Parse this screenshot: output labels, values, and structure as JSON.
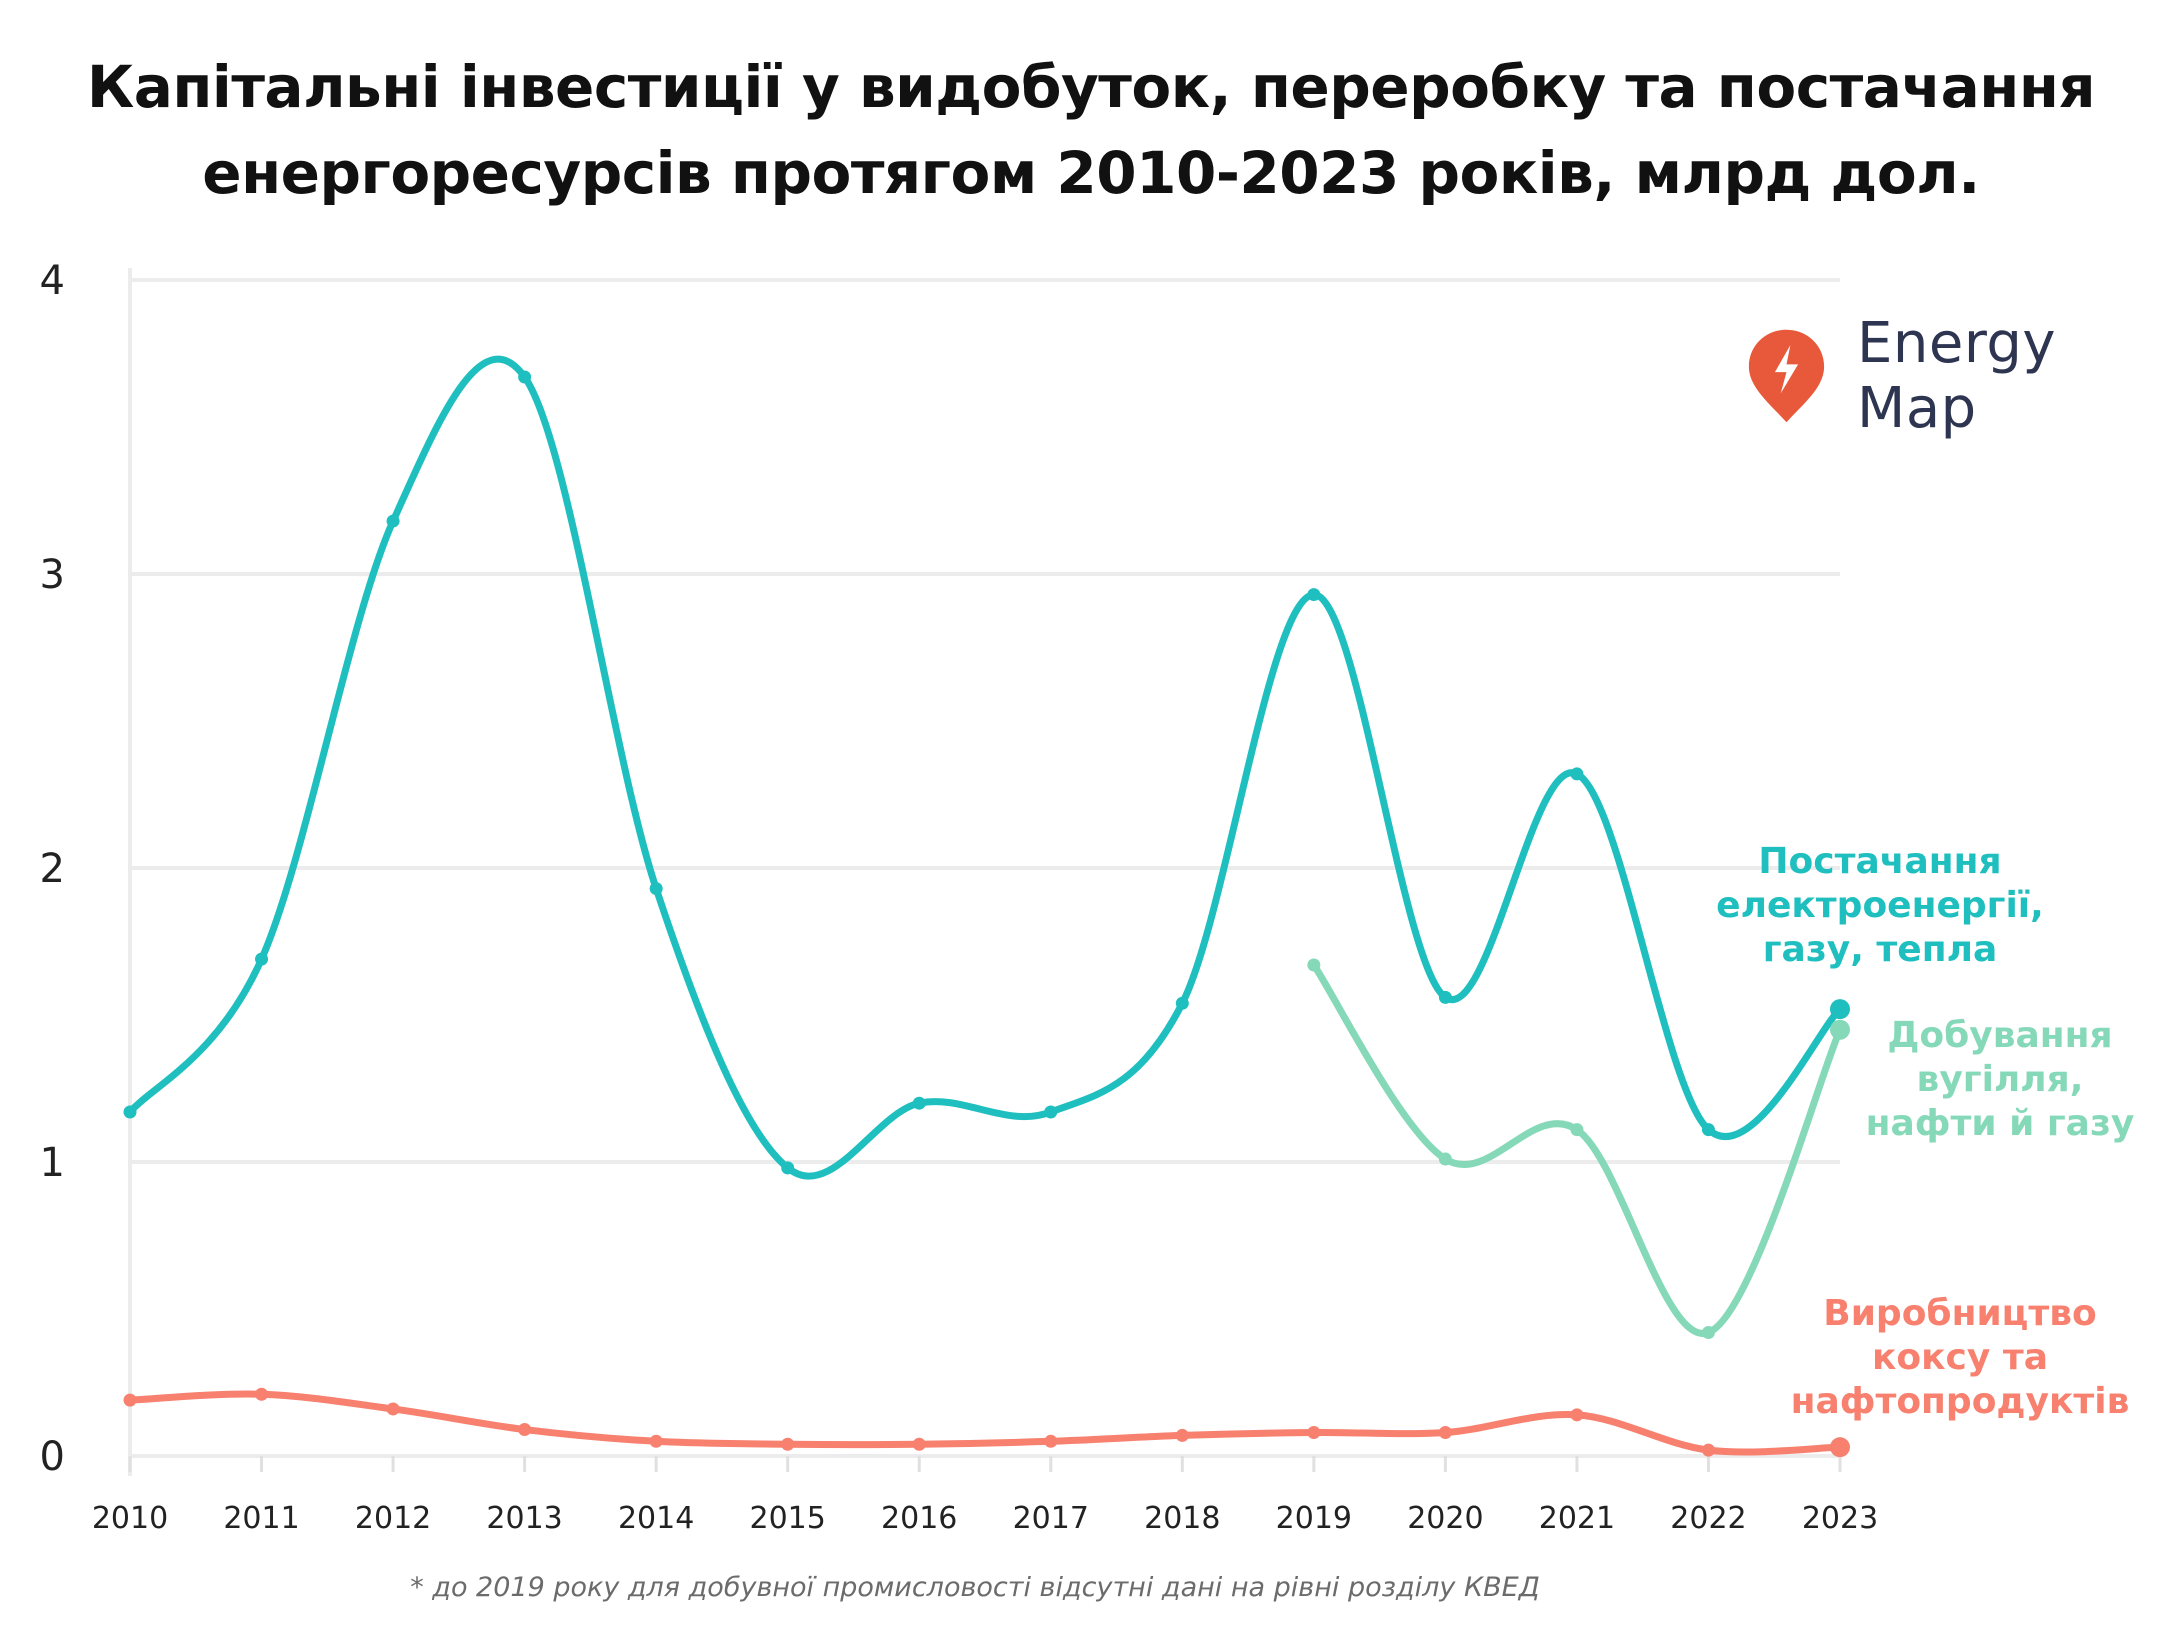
{
  "title_lines": [
    "Капітальні інвестиції у видобуток, переробку та постачання",
    "енергоресурсів протягом 2010-2023 років, млрд дол."
  ],
  "logo": {
    "text": "Energy Map",
    "icon": "lightning-pin-icon",
    "color": "#e8583b"
  },
  "footnote": "* до 2019 року для добувної промисловості відсутні дані на рівні розділу КВЕД",
  "chart_data": {
    "type": "line",
    "title": "Капітальні інвестиції у видобуток, переробку та постачання енергоресурсів протягом 2010-2023 років, млрд дол.",
    "xlabel": "",
    "ylabel": "",
    "x": [
      2010,
      2011,
      2012,
      2013,
      2014,
      2015,
      2016,
      2017,
      2018,
      2019,
      2020,
      2021,
      2022,
      2023
    ],
    "ylim": [
      0,
      4
    ],
    "yticks": [
      "0",
      "1",
      "2",
      "3",
      "4"
    ],
    "grid": true,
    "legend": "inline labels at right end of lines",
    "series": [
      {
        "name": "Постачання електроенергії, газу, тепла",
        "label_lines": [
          "Постачання",
          "електроенергії,",
          "газу, тепла"
        ],
        "color": "#1fbfbf",
        "values": [
          1.17,
          1.69,
          3.18,
          3.67,
          1.93,
          0.98,
          1.2,
          1.17,
          1.54,
          2.93,
          1.56,
          2.32,
          1.11,
          1.52
        ]
      },
      {
        "name": "Добування вугілля, нафти й газу",
        "label_lines": [
          "Добування",
          "вугілля,",
          "нафти й газу"
        ],
        "color": "#85d9b9",
        "values": [
          null,
          null,
          null,
          null,
          null,
          null,
          null,
          null,
          null,
          1.67,
          1.01,
          1.11,
          0.42,
          1.45
        ]
      },
      {
        "name": "Виробництво коксу та нафтопродуктів",
        "label_lines": [
          "Виробництво",
          "коксу та",
          "нафтопродуктів"
        ],
        "color": "#f7806f",
        "values": [
          0.19,
          0.21,
          0.16,
          0.09,
          0.05,
          0.04,
          0.04,
          0.05,
          0.07,
          0.08,
          0.08,
          0.14,
          0.02,
          0.03
        ]
      }
    ]
  }
}
